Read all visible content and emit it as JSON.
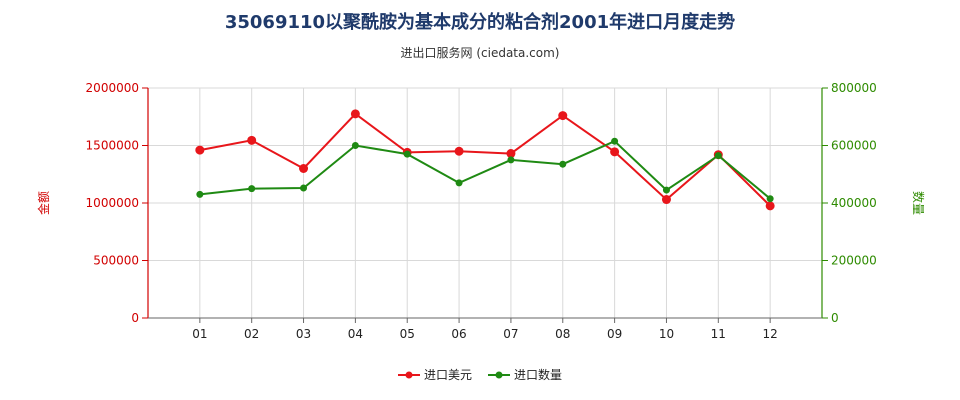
{
  "chart_data": {
    "type": "line",
    "title": "35069110以聚酰胺为基本成分的粘合剂2001年进口月度走势",
    "subtitle": "进出口服务网 (ciedata.com)",
    "categories": [
      "01",
      "02",
      "03",
      "04",
      "05",
      "06",
      "07",
      "08",
      "09",
      "10",
      "11",
      "12"
    ],
    "y_left": {
      "label": "金额",
      "range": [
        0,
        2000000
      ],
      "ticks": [
        "0",
        "500000",
        "1000000",
        "1500000",
        "2000000"
      ]
    },
    "y_right": {
      "label": "数量",
      "range": [
        0,
        800000
      ],
      "ticks": [
        "0",
        "200000",
        "400000",
        "600000",
        "800000"
      ]
    },
    "grid": true,
    "legend_position": "bottom",
    "series": [
      {
        "name": "进口美元",
        "axis": "left",
        "color": "#e8161b",
        "values": [
          1460000,
          1545000,
          1300000,
          1775000,
          1440000,
          1450000,
          1430000,
          1760000,
          1445000,
          1030000,
          1420000,
          975000
        ]
      },
      {
        "name": "进口数量",
        "axis": "right",
        "color": "#1f8a13",
        "values": [
          430000,
          450000,
          452000,
          600000,
          570000,
          470000,
          550000,
          535000,
          615000,
          445000,
          565000,
          415000
        ]
      }
    ]
  }
}
